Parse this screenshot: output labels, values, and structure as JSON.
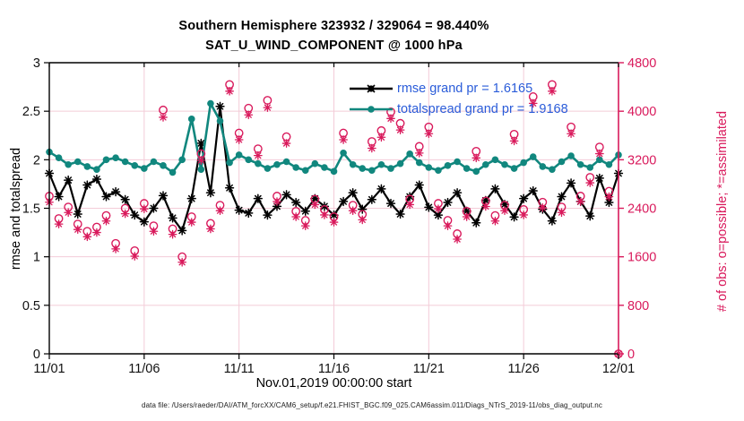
{
  "title": {
    "line1": "Southern Hemisphere 323932 / 329064 = 98.440%",
    "line2": "SAT_U_WIND_COMPONENT @ 1000 hPa"
  },
  "colors": {
    "rmse_line": "#000000",
    "totalspread_line": "#11877e",
    "obs_accent": "#d91a5c",
    "legend_text": "#2a5cd9",
    "grid": "#f3ccd8",
    "tick_text": "#111111"
  },
  "legend": {
    "items": [
      {
        "label": "rmse grand pr = 1.6165",
        "color": "#000000"
      },
      {
        "label": "totalspread grand pr = 1.9168",
        "color": "#11877e"
      }
    ]
  },
  "footer": {
    "text": "data file: /Users/raeder/DAI/ATM_forcXX/CAM6_setup/f.e21.FHIST_BGC.f09_025.CAM6assim.011/Diags_NTrS_2019-11/obs_diag_output.nc"
  },
  "chart_data": {
    "type": "line",
    "title": "Southern Hemisphere 323932 / 329064 = 98.440% | SAT_U_WIND_COMPONENT @ 1000 hPa",
    "x_start_label": "Nov.01,2019 00:00:00 start",
    "x_step_days": 0.5,
    "grid": true,
    "legend_position": "top-right-inside",
    "axes": {
      "x": {
        "label": "Nov.01,2019 00:00:00 start",
        "min_day": 0,
        "max_day": 30,
        "tick_days": [
          0,
          5,
          10,
          15,
          20,
          25,
          30
        ],
        "tick_labels": [
          "11/01",
          "11/06",
          "11/11",
          "11/16",
          "11/21",
          "11/26",
          "12/01"
        ]
      },
      "left": {
        "label": "rmse and totalspread",
        "min": 0,
        "max": 3,
        "ticks": [
          0,
          0.5,
          1,
          1.5,
          2,
          2.5,
          3
        ],
        "tick_labels": [
          "0",
          "0.5",
          "1",
          "1.5",
          "2",
          "2.5",
          "3"
        ],
        "color": "#000000"
      },
      "right": {
        "label": "# of obs: o=possible; *=assimilated",
        "min": 0,
        "max": 4800,
        "ticks": [
          0,
          800,
          1600,
          2400,
          3200,
          4000,
          4800
        ],
        "tick_labels": [
          "0",
          "800",
          "1600",
          "2400",
          "3200",
          "4000",
          "4800"
        ],
        "color": "#d91a5c"
      }
    },
    "series": [
      {
        "name": "rmse",
        "axis": "left",
        "color": "#000000",
        "marker": "asterisk-dot",
        "line": true,
        "values": [
          1.86,
          1.62,
          1.79,
          1.44,
          1.74,
          1.8,
          1.62,
          1.67,
          1.59,
          1.43,
          1.36,
          1.5,
          1.63,
          1.4,
          1.27,
          1.6,
          2.17,
          1.66,
          2.55,
          1.71,
          1.48,
          1.45,
          1.6,
          1.43,
          1.52,
          1.64,
          1.56,
          1.47,
          1.6,
          1.52,
          1.43,
          1.57,
          1.66,
          1.49,
          1.59,
          1.7,
          1.55,
          1.44,
          1.62,
          1.74,
          1.51,
          1.43,
          1.56,
          1.66,
          1.47,
          1.35,
          1.58,
          1.7,
          1.54,
          1.41,
          1.6,
          1.68,
          1.49,
          1.37,
          1.62,
          1.76,
          1.57,
          1.42,
          1.81,
          1.56,
          1.86
        ]
      },
      {
        "name": "totalspread",
        "axis": "left",
        "color": "#11877e",
        "marker": "dot",
        "line": true,
        "values": [
          2.08,
          2.02,
          1.95,
          1.98,
          1.93,
          1.9,
          2.0,
          2.02,
          1.98,
          1.94,
          1.91,
          1.98,
          1.94,
          1.87,
          2.0,
          2.42,
          1.9,
          2.58,
          2.4,
          1.97,
          2.05,
          2.0,
          1.96,
          1.91,
          1.95,
          1.98,
          1.92,
          1.89,
          1.96,
          1.92,
          1.88,
          2.07,
          1.95,
          1.91,
          1.89,
          1.95,
          1.91,
          1.96,
          2.06,
          1.97,
          1.92,
          1.89,
          1.94,
          1.98,
          1.91,
          1.88,
          1.95,
          2.0,
          1.95,
          1.91,
          1.97,
          2.03,
          1.93,
          1.9,
          1.98,
          2.04,
          1.95,
          1.92,
          2.0,
          1.95,
          2.05
        ]
      },
      {
        "name": "obs_possible",
        "axis": "right",
        "color": "#d91a5c",
        "marker": "open-circle",
        "line": false,
        "values": [
          2600,
          2230,
          2420,
          2140,
          2020,
          2090,
          2280,
          1820,
          2400,
          1700,
          2480,
          2110,
          4020,
          2060,
          1600,
          2260,
          3300,
          2150,
          2450,
          4440,
          3640,
          4050,
          3380,
          4180,
          2600,
          3580,
          2350,
          2200,
          2550,
          2380,
          2260,
          3640,
          2450,
          2300,
          3500,
          3680,
          3990,
          3800,
          2550,
          3420,
          3740,
          2480,
          2200,
          1980,
          2350,
          3340,
          2520,
          2280,
          2450,
          3620,
          2380,
          4240,
          2500,
          4440,
          2420,
          3740,
          2600,
          2910,
          3410,
          2680,
          0
        ]
      },
      {
        "name": "obs_assimilated",
        "axis": "right",
        "color": "#d91a5c",
        "marker": "asterisk",
        "line": false,
        "values": [
          2500,
          2140,
          2330,
          2050,
          1930,
          2000,
          2190,
          1730,
          2310,
          1610,
          2390,
          2020,
          3900,
          1970,
          1510,
          2170,
          3190,
          2060,
          2360,
          4330,
          3530,
          3940,
          3270,
          4060,
          2510,
          3470,
          2260,
          2110,
          2460,
          2290,
          2170,
          3530,
          2360,
          2210,
          3390,
          3570,
          3880,
          3690,
          2460,
          3310,
          3630,
          2390,
          2110,
          1890,
          2260,
          3230,
          2430,
          2190,
          2360,
          3510,
          2290,
          4130,
          2410,
          4330,
          2330,
          3630,
          2510,
          2820,
          3300,
          2590,
          0
        ]
      }
    ]
  }
}
